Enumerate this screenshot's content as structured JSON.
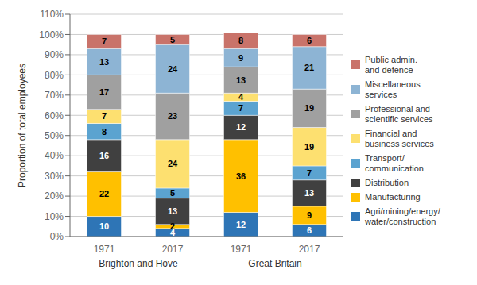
{
  "chart_data": {
    "type": "bar",
    "stacked": true,
    "data_labels": true,
    "grid": true,
    "legend": "right",
    "ylabel": "Proportion of total employees",
    "categories": [
      "1971",
      "2017",
      "1971",
      "2017"
    ],
    "group_labels": [
      "Brighton and Hove",
      "Great Britain"
    ],
    "series": [
      {
        "name": "Agri/mining/energy/\nwater/construction",
        "color": "#2e75b6",
        "values": [
          10,
          4,
          12,
          6
        ]
      },
      {
        "name": "Manufacturing",
        "color": "#ffc000",
        "values": [
          22,
          2,
          36,
          9
        ]
      },
      {
        "name": "Distribution",
        "color": "#404040",
        "values": [
          16,
          13,
          12,
          13
        ]
      },
      {
        "name": "Transport/\ncommunication",
        "color": "#5ba3d0",
        "values": [
          8,
          5,
          7,
          7
        ]
      },
      {
        "name": "Financial and\nbusiness services",
        "color": "#fde070",
        "values": [
          7,
          24,
          4,
          19
        ]
      },
      {
        "name": "Professional and\nscientific services",
        "color": "#a0a0a0",
        "values": [
          17,
          23,
          13,
          19
        ]
      },
      {
        "name": "Miscellaneous\nservices",
        "color": "#8db4d4",
        "values": [
          13,
          24,
          9,
          21
        ]
      },
      {
        "name": "Public admin.\nand defence",
        "color": "#c9736a",
        "values": [
          7,
          5,
          8,
          6
        ]
      }
    ],
    "ylim": [
      0,
      110
    ],
    "yticks": [
      {
        "value": 0,
        "label": "0%"
      },
      {
        "value": 10,
        "label": "10%"
      },
      {
        "value": 20,
        "label": "20%"
      },
      {
        "value": 30,
        "label": "30%"
      },
      {
        "value": 40,
        "label": "40%"
      },
      {
        "value": 50,
        "label": "50%"
      },
      {
        "value": 60,
        "label": "60%"
      },
      {
        "value": 70,
        "label": "70%"
      },
      {
        "value": 80,
        "label": "80%"
      },
      {
        "value": 90,
        "label": "90%"
      },
      {
        "value": 100,
        "label": "100%"
      },
      {
        "value": 110,
        "label": "110%"
      }
    ]
  }
}
